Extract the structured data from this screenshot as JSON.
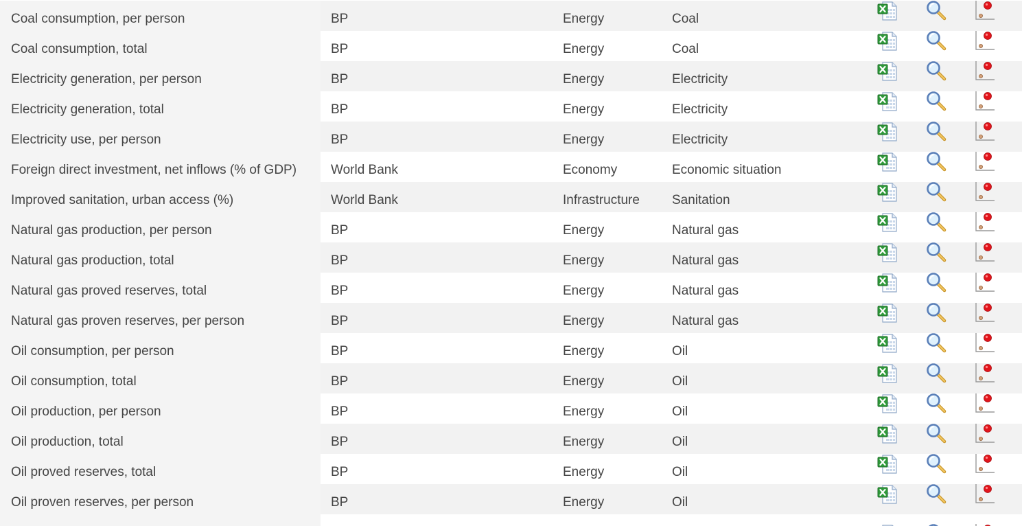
{
  "table": {
    "rows": [
      {
        "name": "Coal consumption, per person",
        "source": "BP",
        "category": "Energy",
        "subcategory": "Coal"
      },
      {
        "name": "Coal consumption, total",
        "source": "BP",
        "category": "Energy",
        "subcategory": "Coal"
      },
      {
        "name": "Electricity generation, per person",
        "source": "BP",
        "category": "Energy",
        "subcategory": "Electricity"
      },
      {
        "name": "Electricity generation, total",
        "source": "BP",
        "category": "Energy",
        "subcategory": "Electricity"
      },
      {
        "name": "Electricity use, per person",
        "source": "BP",
        "category": "Energy",
        "subcategory": "Electricity"
      },
      {
        "name": "Foreign direct investment, net inflows (% of GDP)",
        "source": "World Bank",
        "category": "Economy",
        "subcategory": "Economic situation"
      },
      {
        "name": "Improved sanitation, urban access (%)",
        "source": "World Bank",
        "category": "Infrastructure",
        "subcategory": "Sanitation"
      },
      {
        "name": "Natural gas production, per person",
        "source": "BP",
        "category": "Energy",
        "subcategory": "Natural gas"
      },
      {
        "name": "Natural gas production, total",
        "source": "BP",
        "category": "Energy",
        "subcategory": "Natural gas"
      },
      {
        "name": "Natural gas proved reserves, total",
        "source": "BP",
        "category": "Energy",
        "subcategory": "Natural gas"
      },
      {
        "name": "Natural gas proven reserves, per person",
        "source": "BP",
        "category": "Energy",
        "subcategory": "Natural gas"
      },
      {
        "name": "Oil consumption, per person",
        "source": "BP",
        "category": "Energy",
        "subcategory": "Oil"
      },
      {
        "name": "Oil consumption, total",
        "source": "BP",
        "category": "Energy",
        "subcategory": "Oil"
      },
      {
        "name": "Oil production, per person",
        "source": "BP",
        "category": "Energy",
        "subcategory": "Oil"
      },
      {
        "name": "Oil production, total",
        "source": "BP",
        "category": "Energy",
        "subcategory": "Oil"
      },
      {
        "name": "Oil proved reserves, total",
        "source": "BP",
        "category": "Energy",
        "subcategory": "Oil"
      },
      {
        "name": "Oil proven reserves, per person",
        "source": "BP",
        "category": "Energy",
        "subcategory": "Oil"
      }
    ],
    "row_icons": [
      "excel-download-icon",
      "magnifier-view-icon",
      "scatter-chart-icon"
    ]
  }
}
